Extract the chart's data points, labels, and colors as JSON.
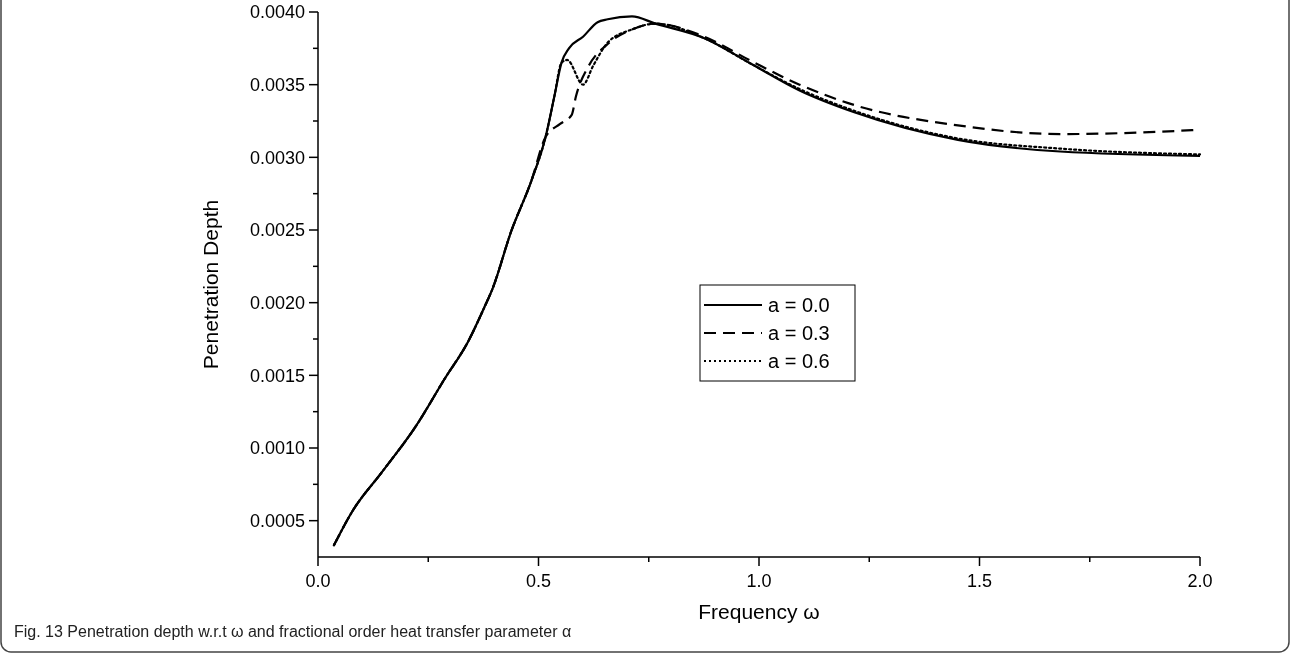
{
  "chart_data": {
    "type": "line",
    "xlabel": "Frequency ω",
    "ylabel": "Penetration Depth",
    "annotations": [
      "Fig. 13 Penetration depth w.r.t ω and fractional order heat transfer parameter α"
    ],
    "xlim": [
      0,
      2
    ],
    "ylim": [
      0.00025,
      0.004
    ],
    "xticks": [
      {
        "value": 0,
        "label": "0.0"
      },
      {
        "value": 0.25,
        "label": null
      },
      {
        "value": 0.5,
        "label": "0.5"
      },
      {
        "value": 0.75,
        "label": null
      },
      {
        "value": 1,
        "label": "1.0"
      },
      {
        "value": 1.25,
        "label": null
      },
      {
        "value": 1.5,
        "label": "1.5"
      },
      {
        "value": 1.75,
        "label": null
      },
      {
        "value": 2,
        "label": "2.0"
      }
    ],
    "yticks": [
      {
        "value": 0.0005,
        "label": "0.0005"
      },
      {
        "value": 0.00075,
        "label": null
      },
      {
        "value": 0.001,
        "label": "0.0010"
      },
      {
        "value": 0.00125,
        "label": null
      },
      {
        "value": 0.0015,
        "label": "0.0015"
      },
      {
        "value": 0.00175,
        "label": null
      },
      {
        "value": 0.002,
        "label": "0.0020"
      },
      {
        "value": 0.00225,
        "label": null
      },
      {
        "value": 0.0025,
        "label": "0.0025"
      },
      {
        "value": 0.00275,
        "label": null
      },
      {
        "value": 0.003,
        "label": "0.0030"
      },
      {
        "value": 0.00325,
        "label": null
      },
      {
        "value": 0.0035,
        "label": "0.0035"
      },
      {
        "value": 0.00375,
        "label": null
      },
      {
        "value": 0.004,
        "label": "0.0040"
      }
    ],
    "grid": false,
    "legend": "center",
    "marker": "none",
    "series": [
      {
        "name": "a = 0.0",
        "color": "#000000",
        "line_style": "solid",
        "x": [
          0.036,
          0.079,
          0.144,
          0.222,
          0.288,
          0.34,
          0.379,
          0.395,
          0.438,
          0.484,
          0.516,
          0.536,
          0.552,
          0.569,
          0.601,
          0.634,
          0.657,
          0.712,
          0.765,
          0.876,
          0.984,
          1.092,
          1.216,
          1.451,
          1.683,
          2.0
        ],
        "values": [
          0.00033,
          0.00057,
          0.00083,
          0.00115,
          0.00148,
          0.00173,
          0.00198,
          0.00209,
          0.00249,
          0.00284,
          0.00314,
          0.00342,
          0.00365,
          0.00375,
          0.00383,
          0.00393,
          0.00395,
          0.00397,
          0.00392,
          0.00382,
          0.00364,
          0.00346,
          0.00331,
          0.00312,
          0.00304,
          0.00301
        ]
      },
      {
        "name": "a = 0.3",
        "color": "#000000",
        "line_style": "dashed",
        "x": [
          0.036,
          0.079,
          0.144,
          0.222,
          0.288,
          0.34,
          0.379,
          0.395,
          0.438,
          0.484,
          0.516,
          0.549,
          0.575,
          0.585,
          0.614,
          0.657,
          0.712,
          0.765,
          0.876,
          0.984,
          1.092,
          1.216,
          1.451,
          1.683,
          1.86,
          2.0
        ],
        "values": [
          0.00033,
          0.00057,
          0.00083,
          0.00115,
          0.00148,
          0.00173,
          0.00198,
          0.00209,
          0.00249,
          0.00284,
          0.00314,
          0.00323,
          0.00329,
          0.00342,
          0.00363,
          0.00378,
          0.00388,
          0.00392,
          0.00383,
          0.00366,
          0.0035,
          0.00336,
          0.00322,
          0.00316,
          0.00317,
          0.00319
        ]
      },
      {
        "name": "a = 0.6",
        "color": "#000000",
        "line_style": "dotted",
        "x": [
          0.036,
          0.079,
          0.144,
          0.222,
          0.288,
          0.34,
          0.379,
          0.395,
          0.438,
          0.484,
          0.516,
          0.536,
          0.552,
          0.565,
          0.601,
          0.624,
          0.657,
          0.712,
          0.765,
          0.876,
          0.984,
          1.092,
          1.216,
          1.451,
          1.683,
          2.0
        ],
        "values": [
          0.00033,
          0.00057,
          0.00083,
          0.00115,
          0.00148,
          0.00173,
          0.00198,
          0.00209,
          0.00249,
          0.00284,
          0.00314,
          0.00342,
          0.00365,
          0.00367,
          0.0035,
          0.00363,
          0.00379,
          0.00388,
          0.00392,
          0.00382,
          0.00364,
          0.00347,
          0.00332,
          0.00313,
          0.00306,
          0.00302
        ]
      }
    ]
  }
}
